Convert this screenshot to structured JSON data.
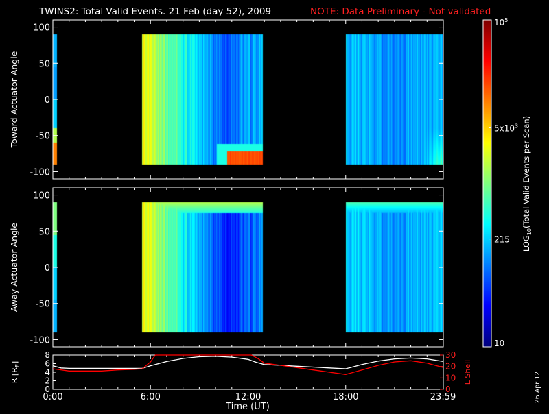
{
  "title": "TWINS2: Total Valid Events. 21 Feb (day  52), 2009",
  "note": "NOTE: Data Preliminary - Not validated",
  "stamp": "26 Apr 12",
  "colors": {
    "bg": "#000000",
    "axis": "#ffffff",
    "note": "#ff2020",
    "r_line": "#ffffff",
    "l_line": "#ff0000"
  },
  "chart_data": [
    {
      "type": "heatmap",
      "name": "toward",
      "ylabel": "Toward Actuator Angle",
      "ylim": [
        -110,
        110
      ],
      "yticks": [
        100,
        50,
        0,
        -50,
        -100
      ],
      "xlim": [
        0,
        24
      ],
      "data_range_y": [
        -90,
        90
      ],
      "segments": [
        {
          "t0": 0.0,
          "t1": 0.25,
          "base": [
            0.3,
            0.28,
            0.33,
            0.27
          ],
          "low_boost": [
            0.55,
            0.75
          ]
        },
        {
          "t0": 5.5,
          "t1": 12.9,
          "profile": [
            [
              5.5,
              0.62
            ],
            [
              6.0,
              0.58
            ],
            [
              6.6,
              0.52
            ],
            [
              7.3,
              0.45
            ],
            [
              8.0,
              0.4
            ],
            [
              8.7,
              0.36
            ],
            [
              9.2,
              0.3
            ],
            [
              9.8,
              0.26
            ],
            [
              10.4,
              0.22
            ],
            [
              11.0,
              0.24
            ],
            [
              11.6,
              0.26
            ],
            [
              12.2,
              0.28
            ],
            [
              12.9,
              0.3
            ]
          ],
          "hot_region": {
            "t0": 10.7,
            "t1": 12.9,
            "y0": -90,
            "y1": -72,
            "level": 0.8
          }
        },
        {
          "t0": 18.0,
          "t1": 24.0,
          "profile": [
            [
              18.0,
              0.33
            ],
            [
              19.0,
              0.3
            ],
            [
              20.0,
              0.28
            ],
            [
              21.0,
              0.27
            ],
            [
              22.0,
              0.28
            ],
            [
              23.0,
              0.3
            ],
            [
              24.0,
              0.32
            ]
          ],
          "low_boost_t0": 22.8
        }
      ]
    },
    {
      "type": "heatmap",
      "name": "away",
      "ylabel": "Away Actuator Angle",
      "ylim": [
        -110,
        110
      ],
      "yticks": [
        100,
        50,
        0,
        -50,
        -100
      ],
      "xlim": [
        0,
        24
      ],
      "data_range_y": [
        -90,
        90
      ],
      "segments": [
        {
          "t0": 0.0,
          "t1": 0.25,
          "base": [
            0.5,
            0.4,
            0.33,
            0.3
          ]
        },
        {
          "t0": 5.5,
          "t1": 12.9,
          "profile": [
            [
              5.5,
              0.62
            ],
            [
              6.0,
              0.58
            ],
            [
              6.6,
              0.52
            ],
            [
              7.3,
              0.45
            ],
            [
              8.0,
              0.38
            ],
            [
              8.7,
              0.33
            ],
            [
              9.2,
              0.27
            ],
            [
              9.8,
              0.22
            ],
            [
              10.4,
              0.18
            ],
            [
              11.0,
              0.17
            ],
            [
              11.6,
              0.19
            ],
            [
              12.2,
              0.22
            ],
            [
              12.9,
              0.26
            ]
          ],
          "top_band_level": 0.55
        },
        {
          "t0": 18.0,
          "t1": 24.0,
          "profile": [
            [
              18.0,
              0.35
            ],
            [
              19.0,
              0.32
            ],
            [
              20.0,
              0.29
            ],
            [
              21.0,
              0.28
            ],
            [
              22.0,
              0.29
            ],
            [
              23.0,
              0.31
            ],
            [
              24.0,
              0.34
            ]
          ],
          "top_band_level": 0.45
        }
      ]
    },
    {
      "type": "line",
      "name": "orbit",
      "xlabel": "Time (UT)",
      "xticks": [
        {
          "value": 0,
          "label": "0:00"
        },
        {
          "value": 6,
          "label": "6:00"
        },
        {
          "value": 12,
          "label": "12:00"
        },
        {
          "value": 18,
          "label": "18:00"
        },
        {
          "value": 23.98,
          "label": "23:59"
        }
      ],
      "left_axis": {
        "label": "R [R",
        "label_sub": "E",
        "label_end": "]",
        "ylim": [
          0,
          8
        ],
        "yticks": [
          0,
          2,
          4,
          6,
          8
        ]
      },
      "right_axis": {
        "label": "L Shell",
        "ylim": [
          0,
          30
        ],
        "yticks": [
          0,
          10,
          20,
          30
        ]
      },
      "series": [
        {
          "name": "R",
          "axis": "left",
          "x": [
            0,
            0.5,
            1,
            2,
            3,
            4,
            5,
            5.5,
            6,
            7,
            8,
            9,
            10,
            11,
            12,
            12.5,
            13,
            14,
            15,
            16,
            17,
            18,
            19,
            20,
            21,
            22,
            23,
            24
          ],
          "values": [
            5.5,
            5.0,
            4.9,
            4.9,
            4.9,
            4.9,
            4.9,
            4.9,
            5.5,
            6.5,
            7.2,
            7.6,
            7.7,
            7.5,
            7.0,
            6.3,
            5.8,
            5.6,
            5.4,
            5.2,
            5.0,
            4.8,
            5.8,
            6.6,
            7.1,
            7.3,
            7.1,
            6.5
          ]
        },
        {
          "name": "L Shell",
          "axis": "right",
          "x": [
            0,
            1,
            2,
            3,
            4,
            5,
            5.5,
            6,
            6.3,
            6.6,
            12.2,
            12.6,
            13,
            14,
            15,
            16,
            17,
            18,
            19,
            20,
            21,
            22,
            23,
            24
          ],
          "values": [
            18,
            16,
            16,
            16,
            17,
            17.5,
            18,
            24,
            30,
            33,
            33,
            27,
            23,
            21,
            19,
            17,
            15,
            13,
            17,
            21,
            24,
            25,
            23,
            19
          ]
        }
      ]
    },
    {
      "type": "colorbar",
      "label": "LOG",
      "label_sub": "10",
      "label_end": "(Total Valid Events per Scan)",
      "range": [
        10,
        100000
      ],
      "ticks": [
        {
          "value": 10,
          "label": "10",
          "pos": 0.0
        },
        {
          "value": 215,
          "label": "215",
          "pos": 0.33
        },
        {
          "value": 5000,
          "label": "5x10",
          "sup": "3",
          "pos": 0.67
        },
        {
          "value": 100000,
          "label": "10",
          "sup": "5",
          "pos": 1.0
        }
      ]
    }
  ]
}
